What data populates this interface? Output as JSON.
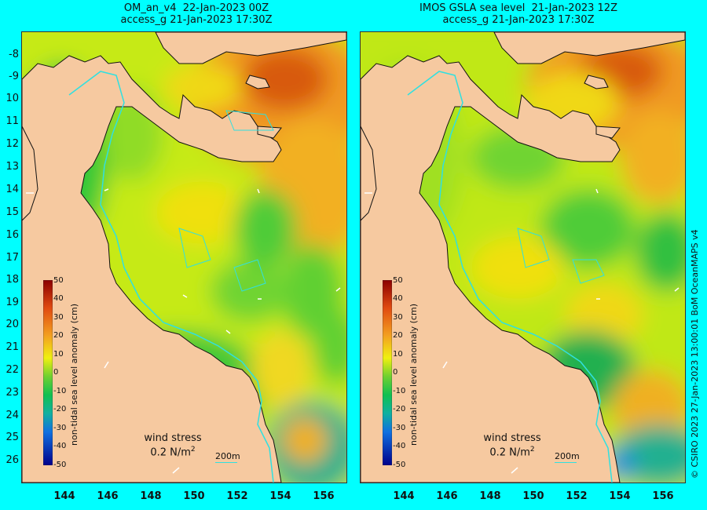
{
  "left_panel": {
    "title_line1": "OM_an_v4  22-Jan-2023 00Z",
    "title_line2": "access_g 21-Jan-2023 17:30Z"
  },
  "right_panel": {
    "title_line1": "IMOS GSLA sea level  21-Jan-2023 12Z",
    "title_line2": "access_g 21-Jan-2023 17:30Z"
  },
  "y_axis_labels": [
    "-8",
    "-9",
    "10",
    "11",
    "12",
    "13",
    "14",
    "15",
    "16",
    "17",
    "18",
    "19",
    "20",
    "21",
    "22",
    "23",
    "24",
    "25",
    "26"
  ],
  "x_axis_labels": [
    "144",
    "146",
    "148",
    "150",
    "152",
    "154",
    "156"
  ],
  "colorbar": {
    "title": "non-tidal sea level anomaly (cm)",
    "ticks": [
      "50",
      "40",
      "30",
      "20",
      "10",
      "0",
      "-10",
      "-20",
      "-30",
      "-40",
      "-50"
    ]
  },
  "wind_label_line1": "wind stress",
  "wind_label_line2": "0.2 N/m",
  "wind_label_superscript": "2",
  "scale_label": "200m",
  "credit": "© CSIRO 2023   27-Jan-2023 13:00:01 BoM OceanMAPS v4",
  "colors": {
    "background": "#00ffff",
    "land": "#f6c9a0",
    "high": "#c0340a",
    "mid": "#e8f000",
    "low": "#10c030"
  }
}
